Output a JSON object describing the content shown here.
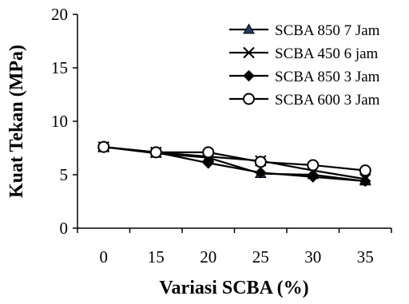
{
  "chart_data": {
    "type": "line",
    "xlabel": "Variasi SCBA (%)",
    "ylabel": "Kuat Tekan (MPa)",
    "categories": [
      "0",
      "15",
      "20",
      "25",
      "30",
      "35"
    ],
    "ylim": [
      0,
      20
    ],
    "yticks": [
      0,
      5,
      10,
      15,
      20
    ],
    "grid": false,
    "legend_position": "top-right",
    "series": [
      {
        "name": "SCBA 850 7 Jam",
        "marker": "triangle",
        "values": [
          7.6,
          7.0,
          6.6,
          5.1,
          5.0,
          4.4
        ]
      },
      {
        "name": "SCBA 450 6 jam",
        "marker": "x",
        "values": [
          7.6,
          7.1,
          6.7,
          6.3,
          5.4,
          4.6
        ]
      },
      {
        "name": "SCBA 850 3 Jam",
        "marker": "diamond",
        "values": [
          7.6,
          7.1,
          6.1,
          5.2,
          4.8,
          4.4
        ]
      },
      {
        "name": "SCBA 600 3 Jam",
        "marker": "circle",
        "values": [
          7.6,
          7.1,
          7.1,
          6.2,
          5.9,
          5.4
        ]
      }
    ],
    "colors": {
      "line": "#000000",
      "triangle_fill": "#1f3a68"
    }
  }
}
